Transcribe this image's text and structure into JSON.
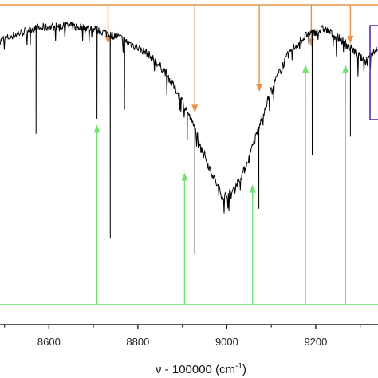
{
  "chart_data": {
    "type": "line",
    "xlabel_main": "ν - 100000 (cm",
    "xlabel_sup": "-1",
    "xlabel_close": ")",
    "xlim": [
      8490,
      9340
    ],
    "ylim": [
      0,
      1
    ],
    "xticks": [
      8600,
      8800,
      9000,
      9200
    ],
    "xtick_labels": [
      "8600",
      "8800",
      "9000",
      "9200"
    ],
    "grid": false,
    "colors": {
      "spectrum": "#000000",
      "upper_markers": "#e8914a",
      "lower_markers": "#6fe36f",
      "inset_box": "#5b2fa8"
    },
    "spectrum_envelope": {
      "x": [
        8490,
        8560,
        8640,
        8700,
        8760,
        8820,
        8860,
        8900,
        8930,
        8960,
        8990,
        9010,
        9040,
        9070,
        9100,
        9140,
        9180,
        9220,
        9260,
        9290,
        9310,
        9340
      ],
      "y": [
        0.88,
        0.92,
        0.93,
        0.92,
        0.89,
        0.84,
        0.78,
        0.68,
        0.58,
        0.46,
        0.36,
        0.37,
        0.45,
        0.58,
        0.72,
        0.84,
        0.9,
        0.92,
        0.88,
        0.84,
        0.81,
        0.86
      ]
    },
    "spectrum_dips": [
      {
        "x": 8571,
        "y": 0.57
      },
      {
        "x": 8708,
        "y": 0.62
      },
      {
        "x": 8738,
        "y": 0.22
      },
      {
        "x": 8770,
        "y": 0.65
      },
      {
        "x": 8911,
        "y": 0.55
      },
      {
        "x": 8928,
        "y": 0.17
      },
      {
        "x": 9072,
        "y": 0.32
      },
      {
        "x": 9192,
        "y": 0.5
      },
      {
        "x": 9278,
        "y": 0.56
      }
    ],
    "upper_marker_x": [
      8733,
      8928,
      9073,
      9190,
      9278
    ],
    "upper_marker_tip_y": [
      0.87,
      0.64,
      0.71,
      0.86,
      0.87
    ],
    "lower_marker_x": [
      8708,
      8905,
      9058,
      9177,
      9267
    ],
    "lower_marker_tip_y": [
      0.6,
      0.44,
      0.4,
      0.8,
      0.8
    ]
  }
}
